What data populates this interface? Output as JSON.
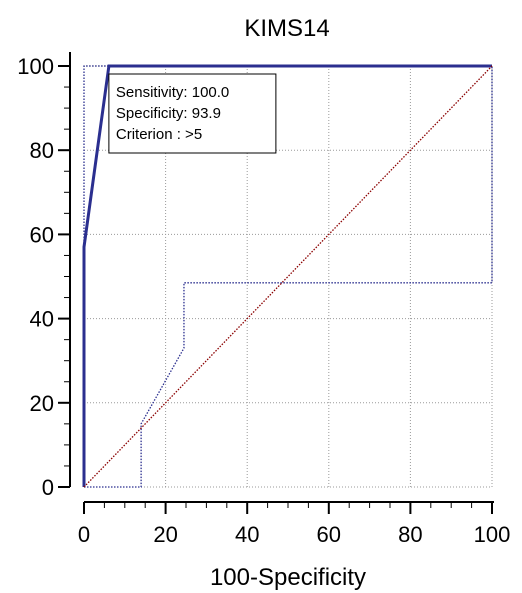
{
  "chart_data": {
    "type": "line",
    "title": "KIMS14",
    "xlabel": "100-Specificity",
    "ylabel": "",
    "xlim": [
      0,
      100
    ],
    "ylim": [
      0,
      100
    ],
    "xticks": [
      0,
      20,
      40,
      60,
      80,
      100
    ],
    "yticks": [
      0,
      20,
      40,
      60,
      80,
      100
    ],
    "x_tick_labels": [
      "0",
      "20",
      "40",
      "60",
      "80",
      "100"
    ],
    "y_tick_labels": [
      "0",
      "20",
      "40",
      "60",
      "80",
      "100"
    ],
    "grid": true,
    "series": [
      {
        "style": "solid",
        "color": "#2b2f8f",
        "points": [
          [
            0,
            0
          ],
          [
            0,
            57
          ],
          [
            6.1,
            100
          ],
          [
            100,
            100
          ]
        ]
      },
      {
        "style": "dotted",
        "color": "#2b2f8f",
        "points": [
          [
            0,
            0
          ],
          [
            0,
            100
          ],
          [
            6.1,
            100
          ]
        ]
      },
      {
        "style": "dotted",
        "color": "#2b2f8f",
        "points": [
          [
            0,
            0
          ],
          [
            14,
            0
          ],
          [
            14,
            15
          ],
          [
            24.5,
            33
          ],
          [
            24.5,
            48.5
          ],
          [
            100,
            48.5
          ],
          [
            100,
            100
          ]
        ]
      },
      {
        "style": "dotted",
        "color": "#8b0000",
        "points": [
          [
            0,
            0
          ],
          [
            100,
            100
          ]
        ]
      }
    ],
    "annotation": {
      "lines": [
        "Sensitivity: 100.0",
        "Specificity: 93.9",
        "Criterion : >5"
      ],
      "anchor_x": 6.1,
      "anchor_y": 100
    }
  }
}
